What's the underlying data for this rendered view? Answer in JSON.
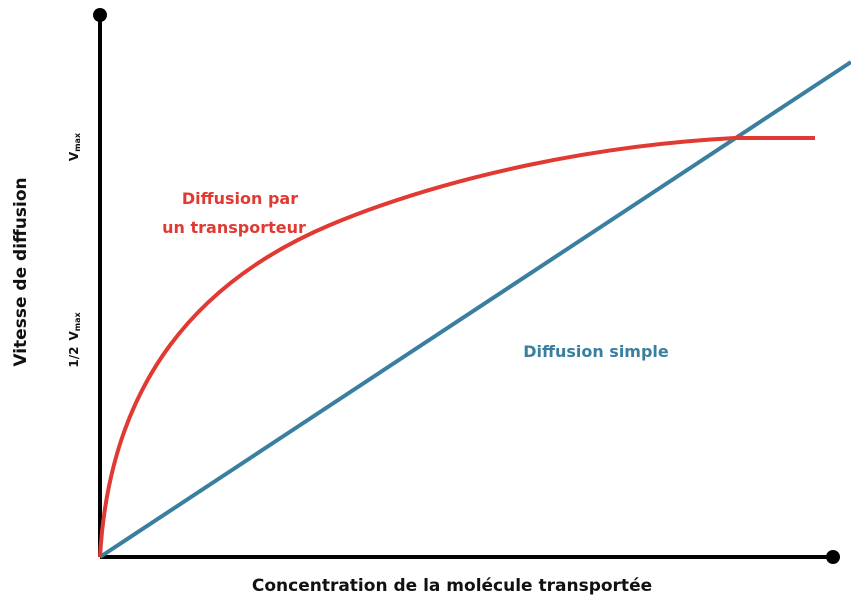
{
  "y_axis": {
    "label": "Vitesse de diffusion",
    "ticks": [
      {
        "symbol": "V",
        "subscript": "max"
      },
      {
        "prefix": "1/2",
        "symbol": "V",
        "subscript": "max"
      }
    ]
  },
  "x_axis": {
    "label": "Concentration de la molécule transportée"
  },
  "curves": [
    {
      "label_lines": [
        "Diffusion par",
        "un transporteur"
      ]
    },
    {
      "label_lines": [
        "Diffusion simple"
      ]
    }
  ]
}
